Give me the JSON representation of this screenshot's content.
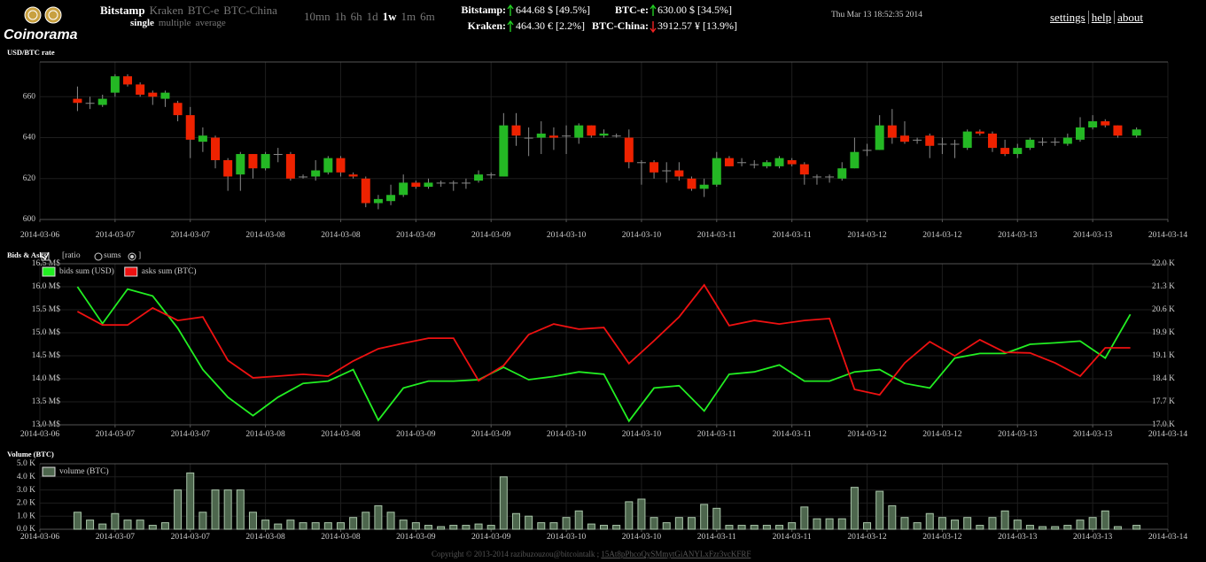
{
  "header": {
    "logo": "Coinorama",
    "exchanges": [
      "Bitstamp",
      "Kraken",
      "BTC-e",
      "BTC-China"
    ],
    "modes": [
      "single",
      "multiple",
      "average"
    ],
    "periods": [
      "10mn",
      "1h",
      "6h",
      "1d",
      "1w",
      "1m",
      "6m"
    ],
    "tickers": [
      {
        "name": "Bitstamp:",
        "quote": "644.68 $ [49.5%]"
      },
      {
        "name": "Kraken:",
        "quote": "464.30 € [2.2%]"
      },
      {
        "name": "BTC-e:",
        "quote": "630.00 $ [34.5%]"
      },
      {
        "name": "BTC-China:",
        "quote": "3912.57 ¥ [13.9%]"
      }
    ],
    "datetime": "Thu Mar 13 18:52:35 2014",
    "links": [
      "settings",
      "help",
      "about"
    ]
  },
  "chart_data": [
    {
      "type": "candlestick",
      "title": "USD/BTC rate",
      "x": [
        6,
        8,
        10,
        12,
        14,
        16,
        18,
        20,
        22,
        24,
        26,
        28,
        30,
        32,
        34,
        36,
        38,
        40,
        42,
        44,
        46,
        48,
        50,
        52,
        54,
        56,
        58,
        60,
        62,
        64,
        66,
        68,
        70,
        72,
        74,
        76,
        78,
        80,
        82,
        84,
        86,
        88,
        90,
        92,
        94,
        96,
        98,
        100,
        102,
        104,
        106,
        108,
        110,
        112,
        114,
        116,
        118,
        120,
        122,
        124,
        126,
        128,
        130,
        132,
        134,
        136,
        138,
        140,
        142,
        144,
        146,
        148,
        150,
        152,
        154,
        156,
        158,
        160,
        162,
        164,
        166,
        168,
        170,
        172,
        175
      ],
      "open": [
        659,
        657,
        656,
        662,
        670,
        666,
        662,
        659,
        657,
        651,
        638,
        640,
        629,
        622,
        632,
        625,
        632,
        632,
        621,
        621,
        623,
        630,
        622,
        620,
        608,
        609,
        612,
        618,
        616,
        618,
        618,
        618,
        619,
        622,
        621,
        646,
        640,
        640,
        641,
        641,
        640,
        646,
        641,
        641,
        640,
        628,
        628,
        624,
        624,
        620,
        615,
        617,
        630,
        628,
        627,
        626,
        626,
        629,
        627,
        621,
        621,
        620,
        625,
        634,
        634,
        646,
        641,
        639,
        641,
        637,
        637,
        635,
        643,
        642,
        635,
        632,
        635,
        638,
        638,
        637,
        639,
        645,
        648,
        646,
        641
      ],
      "high": [
        665,
        660,
        661,
        671,
        671,
        667,
        663,
        663,
        658,
        655,
        645,
        641,
        630,
        633,
        632,
        633,
        635,
        633,
        622,
        629,
        631,
        631,
        623,
        621,
        612,
        617,
        622,
        619,
        620,
        619,
        619,
        620,
        624,
        623,
        652,
        652,
        645,
        648,
        645,
        646,
        647,
        646,
        644,
        642,
        644,
        629,
        629,
        628,
        628,
        621,
        620,
        633,
        631,
        630,
        629,
        629,
        631,
        630,
        628,
        622,
        622,
        628,
        640,
        637,
        651,
        654,
        648,
        640,
        642,
        640,
        639,
        644,
        644,
        643,
        639,
        637,
        640,
        640,
        640,
        642,
        650,
        651,
        649,
        646,
        645
      ],
      "low": [
        653,
        654,
        655,
        660,
        665,
        660,
        656,
        655,
        648,
        630,
        633,
        625,
        614,
        614,
        620,
        624,
        628,
        619,
        620,
        619,
        622,
        621,
        620,
        606,
        605,
        607,
        611,
        615,
        615,
        616,
        614,
        615,
        618,
        620,
        621,
        636,
        631,
        632,
        634,
        632,
        637,
        640,
        640,
        640,
        625,
        617,
        620,
        618,
        619,
        614,
        611,
        616,
        626,
        626,
        625,
        625,
        625,
        626,
        617,
        617,
        618,
        619,
        625,
        631,
        634,
        637,
        637,
        637,
        630,
        632,
        630,
        634,
        641,
        633,
        631,
        630,
        634,
        636,
        636,
        636,
        638,
        644,
        645,
        640,
        640
      ],
      "close": [
        657,
        657,
        659,
        670,
        666,
        661,
        660,
        662,
        651,
        639,
        641,
        629,
        621,
        632,
        625,
        632,
        632,
        620,
        621,
        624,
        630,
        623,
        621,
        608,
        610,
        612,
        618,
        616,
        618,
        618,
        618,
        618,
        622,
        622,
        646,
        641,
        640,
        642,
        640,
        641,
        646,
        641,
        642,
        641,
        628,
        628,
        623,
        624,
        621,
        615,
        617,
        630,
        626,
        628,
        627,
        628,
        630,
        627,
        622,
        621,
        621,
        625,
        633,
        634,
        646,
        640,
        638,
        639,
        636,
        637,
        637,
        643,
        642,
        635,
        632,
        635,
        639,
        638,
        638,
        640,
        645,
        648,
        646,
        641,
        644
      ],
      "up_color": "#24b824",
      "down_color": "#ee2200",
      "doji_color": "#8a8a8a",
      "wick_color": "#8a8a8a",
      "xlim": [
        0,
        180
      ],
      "xticks": [
        {
          "value": 0,
          "label": "2014-03-06"
        },
        {
          "value": 12,
          "label": "2014-03-07"
        },
        {
          "value": 24,
          "label": "2014-03-07"
        },
        {
          "value": 36,
          "label": "2014-03-08"
        },
        {
          "value": 48,
          "label": "2014-03-08"
        },
        {
          "value": 60,
          "label": "2014-03-09"
        },
        {
          "value": 72,
          "label": "2014-03-09"
        },
        {
          "value": 84,
          "label": "2014-03-10"
        },
        {
          "value": 96,
          "label": "2014-03-10"
        },
        {
          "value": 108,
          "label": "2014-03-11"
        },
        {
          "value": 120,
          "label": "2014-03-11"
        },
        {
          "value": 132,
          "label": "2014-03-12"
        },
        {
          "value": 144,
          "label": "2014-03-12"
        },
        {
          "value": 156,
          "label": "2014-03-13"
        },
        {
          "value": 168,
          "label": "2014-03-13"
        },
        {
          "value": 180,
          "label": "2014-03-14"
        }
      ],
      "ylim": [
        600,
        677
      ],
      "yticks": [
        600,
        620,
        640,
        660
      ],
      "grid": true
    },
    {
      "type": "line",
      "title": "Bids & Asks",
      "options": [
        "[ratio",
        "sums",
        "]"
      ],
      "x": [
        6,
        10,
        14,
        18,
        22,
        26,
        30,
        34,
        38,
        42,
        46,
        50,
        54,
        58,
        62,
        66,
        70,
        74,
        78,
        82,
        86,
        90,
        94,
        98,
        102,
        106,
        110,
        114,
        118,
        122,
        126,
        130,
        134,
        138,
        142,
        146,
        150,
        154,
        158,
        162,
        166,
        170,
        174
      ],
      "series": [
        {
          "name": "bids sum (USD)",
          "color": "#22ee22",
          "values": [
            16.0,
            15.2,
            15.95,
            15.8,
            15.1,
            14.2,
            13.6,
            13.2,
            13.6,
            13.9,
            13.95,
            14.2,
            13.1,
            13.8,
            13.95,
            13.95,
            13.98,
            14.25,
            13.98,
            14.05,
            14.15,
            14.1,
            13.08,
            13.8,
            13.85,
            13.3,
            14.1,
            14.15,
            14.3,
            13.95,
            13.95,
            14.15,
            14.2,
            13.9,
            13.8,
            14.45,
            14.55,
            14.55,
            14.75,
            14.78,
            14.82,
            14.45,
            15.4
          ]
        },
        {
          "name": "asks sum (BTC)",
          "color": "#ee1111",
          "axis": "y2",
          "values": [
            20.52,
            20.1,
            20.1,
            20.63,
            20.24,
            20.35,
            19.0,
            18.46,
            18.51,
            18.57,
            18.51,
            18.98,
            19.36,
            19.53,
            19.69,
            19.69,
            18.37,
            18.84,
            19.8,
            20.13,
            19.97,
            20.02,
            18.9,
            19.61,
            20.35,
            21.34,
            20.08,
            20.24,
            20.13,
            20.24,
            20.3,
            18.1,
            17.93,
            18.92,
            19.58,
            19.14,
            19.64,
            19.25,
            19.23,
            18.92,
            18.51,
            19.39,
            19.39
          ]
        }
      ],
      "xlim": [
        0,
        180
      ],
      "xticks": [
        {
          "value": 0,
          "label": "2014-03-06"
        },
        {
          "value": 12,
          "label": "2014-03-07"
        },
        {
          "value": 24,
          "label": "2014-03-07"
        },
        {
          "value": 36,
          "label": "2014-03-08"
        },
        {
          "value": 48,
          "label": "2014-03-08"
        },
        {
          "value": 60,
          "label": "2014-03-09"
        },
        {
          "value": 72,
          "label": "2014-03-09"
        },
        {
          "value": 84,
          "label": "2014-03-10"
        },
        {
          "value": 96,
          "label": "2014-03-10"
        },
        {
          "value": 108,
          "label": "2014-03-11"
        },
        {
          "value": 120,
          "label": "2014-03-11"
        },
        {
          "value": 132,
          "label": "2014-03-12"
        },
        {
          "value": 144,
          "label": "2014-03-12"
        },
        {
          "value": 156,
          "label": "2014-03-13"
        },
        {
          "value": 168,
          "label": "2014-03-13"
        },
        {
          "value": 180,
          "label": "2014-03-14"
        }
      ],
      "ylim": [
        13,
        16.5
      ],
      "yticks": [
        {
          "value": 13,
          "label": "13.0 M$"
        },
        {
          "value": 13.5,
          "label": "13.5 M$"
        },
        {
          "value": 14,
          "label": "14.0 M$"
        },
        {
          "value": 14.5,
          "label": "14.5 M$"
        },
        {
          "value": 15,
          "label": "15.0 M$"
        },
        {
          "value": 15.5,
          "label": "15.5 M$"
        },
        {
          "value": 16,
          "label": "16.0 M$"
        },
        {
          "value": 16.5,
          "label": "16.5 M$"
        }
      ],
      "y2lim": [
        17,
        22
      ],
      "y2ticks": [
        {
          "value": 17,
          "label": "17.0 K"
        },
        {
          "value": 17.714,
          "label": "17.7 K"
        },
        {
          "value": 18.429,
          "label": "18.4 K"
        },
        {
          "value": 19.143,
          "label": "19.1 K"
        },
        {
          "value": 19.857,
          "label": "19.9 K"
        },
        {
          "value": 20.571,
          "label": "20.6 K"
        },
        {
          "value": 21.286,
          "label": "21.3 K"
        },
        {
          "value": 22,
          "label": "22.0 K"
        }
      ],
      "grid": true
    },
    {
      "type": "bar",
      "title": "Volume (BTC)",
      "x": [
        6,
        8,
        10,
        12,
        14,
        16,
        18,
        20,
        22,
        24,
        26,
        28,
        30,
        32,
        34,
        36,
        38,
        40,
        42,
        44,
        46,
        48,
        50,
        52,
        54,
        56,
        58,
        60,
        62,
        64,
        66,
        68,
        70,
        72,
        74,
        76,
        78,
        80,
        82,
        84,
        86,
        88,
        90,
        92,
        94,
        96,
        98,
        100,
        102,
        104,
        106,
        108,
        110,
        112,
        114,
        116,
        118,
        120,
        122,
        124,
        126,
        128,
        130,
        132,
        134,
        136,
        138,
        140,
        142,
        144,
        146,
        148,
        150,
        152,
        154,
        156,
        158,
        160,
        162,
        164,
        166,
        168,
        170,
        172,
        175
      ],
      "series": [
        {
          "name": "volume (BTC)",
          "color": "#4d664d",
          "edge_color": "#a8c4a8",
          "values": [
            1.3,
            0.7,
            0.4,
            1.2,
            0.7,
            0.7,
            0.3,
            0.5,
            3.0,
            4.3,
            1.3,
            3.0,
            3.0,
            3.0,
            1.3,
            0.7,
            0.4,
            0.7,
            0.5,
            0.5,
            0.5,
            0.5,
            0.9,
            1.3,
            1.8,
            1.3,
            0.7,
            0.5,
            0.3,
            0.2,
            0.3,
            0.3,
            0.4,
            0.3,
            4.0,
            1.2,
            1.0,
            0.5,
            0.5,
            0.9,
            1.4,
            0.4,
            0.3,
            0.3,
            2.1,
            2.3,
            0.9,
            0.5,
            0.9,
            0.9,
            1.9,
            1.6,
            0.3,
            0.3,
            0.3,
            0.3,
            0.3,
            0.5,
            1.7,
            0.8,
            0.8,
            0.8,
            3.2,
            0.5,
            2.9,
            1.8,
            0.9,
            0.5,
            1.2,
            0.9,
            0.7,
            0.9,
            0.3,
            0.9,
            1.4,
            0.7,
            0.3,
            0.2,
            0.2,
            0.3,
            0.7,
            0.9,
            1.4,
            0.2,
            0.3
          ]
        }
      ],
      "xlim": [
        0,
        180
      ],
      "xticks": [
        {
          "value": 0,
          "label": "2014-03-06"
        },
        {
          "value": 12,
          "label": "2014-03-07"
        },
        {
          "value": 24,
          "label": "2014-03-07"
        },
        {
          "value": 36,
          "label": "2014-03-08"
        },
        {
          "value": 48,
          "label": "2014-03-08"
        },
        {
          "value": 60,
          "label": "2014-03-09"
        },
        {
          "value": 72,
          "label": "2014-03-09"
        },
        {
          "value": 84,
          "label": "2014-03-10"
        },
        {
          "value": 96,
          "label": "2014-03-10"
        },
        {
          "value": 108,
          "label": "2014-03-11"
        },
        {
          "value": 120,
          "label": "2014-03-11"
        },
        {
          "value": 132,
          "label": "2014-03-12"
        },
        {
          "value": 144,
          "label": "2014-03-12"
        },
        {
          "value": 156,
          "label": "2014-03-13"
        },
        {
          "value": 168,
          "label": "2014-03-13"
        },
        {
          "value": 180,
          "label": "2014-03-14"
        }
      ],
      "ylim": [
        0,
        5
      ],
      "yticks": [
        {
          "value": 0,
          "label": "0.0 K"
        },
        {
          "value": 1,
          "label": "1.0 K"
        },
        {
          "value": 2,
          "label": "2.0 K"
        },
        {
          "value": 3,
          "label": "3.0 K"
        },
        {
          "value": 4,
          "label": "4.0 K"
        },
        {
          "value": 5,
          "label": "5.0 K"
        }
      ],
      "grid": true
    }
  ],
  "footer": {
    "copyright": "Copyright © 2013-2014 razibuzouzou@bitcointalk ;",
    "address": "15At8pPhcoQySMmytGiANYLxFzr3vcKFRF"
  }
}
